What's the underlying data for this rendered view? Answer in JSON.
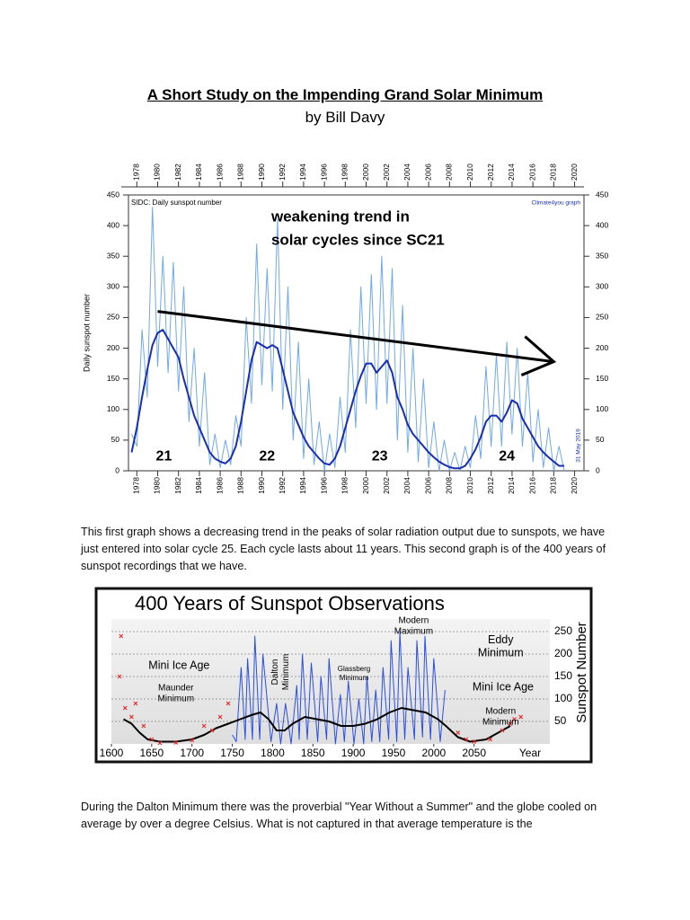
{
  "title": "A Short Study on the Impending Grand Solar Minimum",
  "byline": "by Bill Davy",
  "paragraphs": [
    "This first graph shows a decreasing trend in the peaks of solar radiation output due to sunspots, we have just entered into solar cycle 25. Each cycle lasts about 11 years. This second graph is of the 400 years of sunspot recordings that we have.",
    "During the Dalton Minimum there was the proverbial \"Year Without a Summer\" and the globe cooled on average by over a degree Celsius. What is not captured in that average temperature is the"
  ],
  "chart_data": [
    {
      "type": "line",
      "title": "SIDC: Daily sunspot number",
      "source": "Climate4you graph",
      "date": "31 May 2019",
      "y_label": "Daily sunspot number",
      "xlim": [
        1977.2,
        2020.9
      ],
      "xticks": [
        1978,
        1980,
        1982,
        1984,
        1986,
        1988,
        1990,
        1992,
        1994,
        1996,
        1998,
        2000,
        2002,
        2004,
        2006,
        2008,
        2010,
        2012,
        2014,
        2016,
        2018,
        2020
      ],
      "ylim": [
        0,
        450
      ],
      "yticks": [
        0,
        50,
        100,
        150,
        200,
        250,
        300,
        350,
        400,
        450
      ],
      "x": [
        1977.5,
        1978,
        1978.5,
        1979,
        1979.5,
        1980,
        1980.5,
        1981,
        1981.5,
        1982,
        1982.5,
        1983,
        1983.5,
        1984,
        1984.5,
        1985,
        1985.5,
        1986,
        1986.5,
        1987,
        1987.5,
        1988,
        1988.5,
        1989,
        1989.5,
        1990,
        1990.5,
        1991,
        1991.5,
        1992,
        1992.5,
        1993,
        1993.5,
        1994,
        1994.5,
        1995,
        1995.5,
        1996,
        1996.5,
        1997,
        1997.5,
        1998,
        1998.5,
        1999,
        1999.5,
        2000,
        2000.5,
        2001,
        2001.5,
        2002,
        2002.5,
        2003,
        2003.5,
        2004,
        2004.5,
        2005,
        2005.5,
        2006,
        2006.5,
        2007,
        2007.5,
        2008,
        2008.5,
        2009,
        2009.5,
        2010,
        2010.5,
        2011,
        2011.5,
        2012,
        2012.5,
        2013,
        2013.5,
        2014,
        2014.5,
        2015,
        2015.5,
        2016,
        2016.5,
        2017,
        2017.5,
        2018,
        2018.5,
        2019
      ],
      "series": [
        {
          "color": "#6fa8ee",
          "width": 1,
          "values": [
            60,
            40,
            230,
            120,
            430,
            170,
            350,
            160,
            340,
            130,
            300,
            80,
            200,
            40,
            160,
            10,
            60,
            5,
            50,
            10,
            90,
            40,
            250,
            110,
            370,
            140,
            330,
            130,
            410,
            100,
            300,
            50,
            210,
            20,
            150,
            10,
            80,
            0,
            60,
            5,
            120,
            30,
            230,
            70,
            300,
            110,
            320,
            100,
            350,
            110,
            330,
            50,
            270,
            30,
            200,
            15,
            150,
            5,
            80,
            0,
            50,
            0,
            30,
            0,
            40,
            5,
            90,
            20,
            170,
            40,
            190,
            40,
            210,
            60,
            200,
            40,
            160,
            15,
            100,
            5,
            70,
            0,
            40,
            0
          ]
        },
        {
          "color": "#1a2fb0",
          "width": 2,
          "values": [
            30,
            70,
            120,
            165,
            205,
            225,
            230,
            215,
            200,
            185,
            150,
            120,
            90,
            70,
            50,
            30,
            20,
            15,
            12,
            20,
            40,
            80,
            130,
            180,
            210,
            205,
            200,
            205,
            200,
            165,
            130,
            95,
            75,
            55,
            40,
            30,
            20,
            12,
            10,
            20,
            40,
            70,
            100,
            130,
            155,
            175,
            175,
            160,
            170,
            180,
            160,
            120,
            100,
            75,
            60,
            50,
            40,
            30,
            22,
            15,
            10,
            6,
            4,
            4,
            8,
            20,
            35,
            55,
            80,
            90,
            90,
            80,
            95,
            115,
            110,
            85,
            70,
            55,
            40,
            30,
            22,
            15,
            8,
            8
          ]
        }
      ],
      "trend_arrow": {
        "x": [
          1980,
          2018
        ],
        "y": [
          260,
          178
        ]
      },
      "annotations": [
        {
          "text": "weakening trend in",
          "x": 1990.9,
          "y": 413
        },
        {
          "text": "solar cycles since SC21",
          "x": 1990.9,
          "y": 375
        },
        {
          "text": "21",
          "x": 1980.6,
          "y": 23
        },
        {
          "text": "22",
          "x": 1990.5,
          "y": 23
        },
        {
          "text": "23",
          "x": 2001.3,
          "y": 23
        },
        {
          "text": "24",
          "x": 2013.5,
          "y": 23
        }
      ]
    },
    {
      "type": "line",
      "title": "400 Years of Sunspot Observations",
      "y_label": "Sunspot Number",
      "x_label": "Year",
      "xlim": [
        1600,
        2144
      ],
      "xticks": [
        1600,
        1650,
        1700,
        1750,
        1800,
        1850,
        1900,
        1950,
        2000,
        2050
      ],
      "ylim": [
        0,
        278
      ],
      "yticks": [
        50,
        100,
        150,
        200,
        250
      ],
      "grid": true,
      "series": [
        {
          "color": "#2a4fe0",
          "width": 1,
          "x": [
            1750,
            1755,
            1761,
            1766,
            1769,
            1775,
            1778,
            1784,
            1788,
            1798,
            1805,
            1810,
            1816,
            1823,
            1830,
            1833,
            1837,
            1843,
            1848,
            1856,
            1860,
            1867,
            1870,
            1878,
            1884,
            1889,
            1894,
            1901,
            1907,
            1913,
            1917,
            1923,
            1928,
            1933,
            1937,
            1944,
            1947,
            1954,
            1958,
            1964,
            1968,
            1976,
            1979,
            1986,
            1989,
            1996,
            2000,
            2008,
            2014
          ],
          "values": [
            20,
            5,
            170,
            10,
            190,
            10,
            240,
            10,
            200,
            5,
            90,
            0,
            90,
            0,
            130,
            10,
            200,
            10,
            180,
            5,
            150,
            10,
            190,
            0,
            110,
            5,
            140,
            0,
            100,
            0,
            150,
            5,
            120,
            5,
            170,
            10,
            230,
            5,
            250,
            10,
            170,
            10,
            230,
            15,
            240,
            10,
            190,
            5,
            120
          ]
        },
        {
          "color": "#000000",
          "width": 2,
          "x": [
            1615,
            1625,
            1635,
            1645,
            1660,
            1680,
            1700,
            1715,
            1730,
            1745,
            1760,
            1775,
            1785,
            1795,
            1805,
            1815,
            1825,
            1840,
            1855,
            1870,
            1885,
            1900,
            1915,
            1930,
            1945,
            1960,
            1975,
            1990,
            2005,
            2015,
            2030,
            2045,
            2065,
            2080,
            2095
          ],
          "values": [
            55,
            45,
            25,
            10,
            5,
            5,
            10,
            20,
            35,
            45,
            55,
            65,
            70,
            55,
            30,
            30,
            45,
            60,
            55,
            50,
            40,
            40,
            45,
            55,
            70,
            80,
            75,
            70,
            55,
            40,
            15,
            5,
            10,
            25,
            40
          ]
        },
        {
          "color": "#e02020",
          "marker": "x",
          "x": [
            1610,
            1612,
            1617,
            1625,
            1630,
            1640,
            1650,
            1660,
            1680,
            1700,
            1715,
            1725,
            1735,
            1745,
            2030,
            2040,
            2050,
            2070,
            2085,
            2095,
            2100,
            2108
          ],
          "values": [
            150,
            240,
            80,
            60,
            90,
            40,
            10,
            2,
            3,
            8,
            40,
            30,
            60,
            90,
            25,
            10,
            5,
            10,
            30,
            45,
            55,
            60
          ]
        }
      ],
      "annotations": [
        {
          "lines": [
            "Mini Ice Age"
          ],
          "x": 1684,
          "y": 174,
          "size": "large"
        },
        {
          "lines": [
            "Maunder",
            "Minimum"
          ],
          "x": 1680,
          "y": 112
        },
        {
          "lines": [
            "Dalton",
            "Minimum"
          ],
          "x": 1810,
          "y": 160,
          "rotate": true
        },
        {
          "lines": [
            "Glassberg",
            "Minimum"
          ],
          "x": 1901,
          "y": 156,
          "size": "small"
        },
        {
          "lines": [
            "Modern",
            "Maximum"
          ],
          "x": 1975,
          "y": 262
        },
        {
          "lines": [
            "Eddy",
            "Minimum"
          ],
          "x": 2083,
          "y": 216,
          "size": "large"
        },
        {
          "lines": [
            "Mini Ice Age"
          ],
          "x": 2086,
          "y": 126,
          "size": "large"
        },
        {
          "lines": [
            "Modern",
            "Minimum"
          ],
          "x": 2083,
          "y": 60
        }
      ]
    }
  ]
}
